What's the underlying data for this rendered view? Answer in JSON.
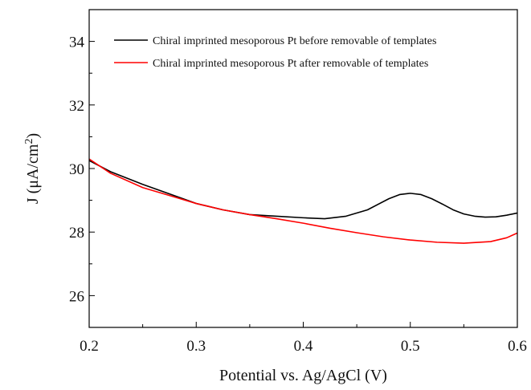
{
  "chart_data": {
    "type": "line",
    "xlabel": "Potential vs. Ag/AgCl (V)",
    "ylabel": {
      "prefix": "J (",
      "unit": "μA/cm",
      "sup": "2",
      "suffix": ")"
    },
    "xlim": [
      0.2,
      0.6
    ],
    "ylim": [
      25,
      35
    ],
    "xticks": [
      0.2,
      0.3,
      0.4,
      0.5,
      0.6
    ],
    "yticks": [
      26,
      28,
      30,
      32,
      34
    ],
    "legend_position": "top-right",
    "series": [
      {
        "name": "Chiral imprinted mesoporous Pt before removable of templates",
        "color": "#000000",
        "x": [
          0.2,
          0.22,
          0.25,
          0.275,
          0.3,
          0.325,
          0.35,
          0.375,
          0.4,
          0.42,
          0.44,
          0.46,
          0.48,
          0.49,
          0.5,
          0.51,
          0.52,
          0.53,
          0.54,
          0.55,
          0.56,
          0.57,
          0.58,
          0.59,
          0.6
        ],
        "y": [
          30.25,
          29.9,
          29.5,
          29.2,
          28.9,
          28.7,
          28.55,
          28.5,
          28.45,
          28.42,
          28.5,
          28.7,
          29.05,
          29.18,
          29.22,
          29.18,
          29.05,
          28.88,
          28.7,
          28.57,
          28.5,
          28.47,
          28.48,
          28.53,
          28.6
        ]
      },
      {
        "name": "Chiral imprinted mesoporous Pt after removable of templates",
        "color": "#ff0000",
        "x": [
          0.2,
          0.22,
          0.25,
          0.275,
          0.3,
          0.325,
          0.35,
          0.375,
          0.4,
          0.425,
          0.45,
          0.475,
          0.5,
          0.525,
          0.55,
          0.575,
          0.59,
          0.6
        ],
        "y": [
          30.3,
          29.85,
          29.4,
          29.15,
          28.9,
          28.7,
          28.55,
          28.42,
          28.28,
          28.12,
          27.98,
          27.85,
          27.75,
          27.68,
          27.65,
          27.7,
          27.82,
          27.97
        ]
      }
    ]
  }
}
